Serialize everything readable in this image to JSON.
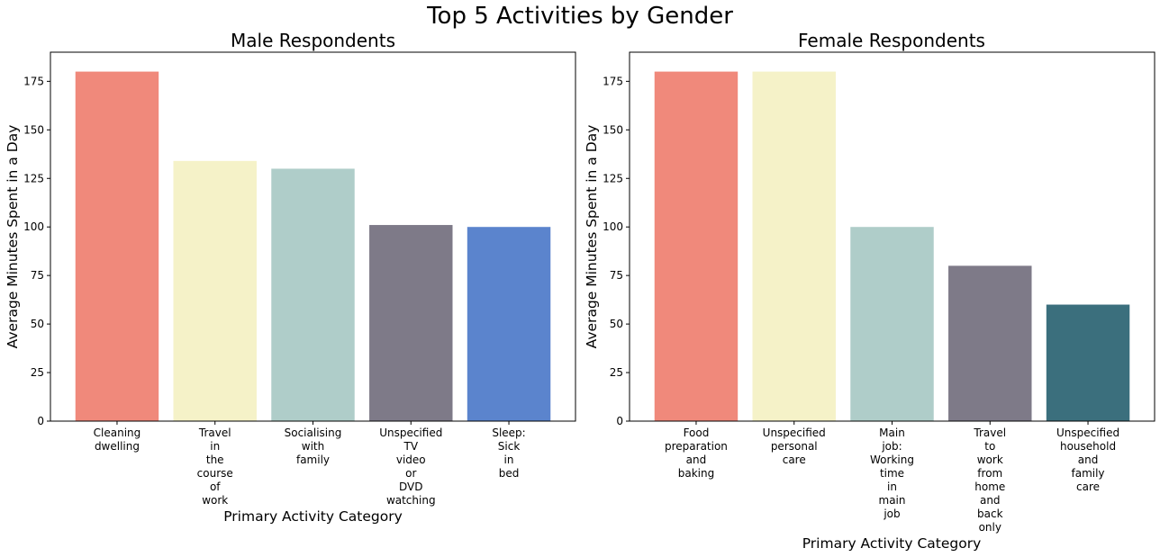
{
  "figure": {
    "title": "Top 5 Activities by Gender"
  },
  "chart_data": [
    {
      "type": "bar",
      "title": "Male Respondents",
      "xlabel": "Primary Activity Category",
      "ylabel": "Average Minutes Spent in a Day",
      "ylim": [
        0,
        190
      ],
      "yticks": [
        0,
        25,
        50,
        75,
        100,
        125,
        150,
        175
      ],
      "categories": [
        "Cleaning dwelling",
        "Travel in the course of work",
        "Socialising with family",
        "Unspecified TV video or DVD watching",
        "Sleep: Sick in bed"
      ],
      "values": [
        180,
        134,
        130,
        101,
        100
      ],
      "colors": [
        "#f0897b",
        "#f5f2c8",
        "#afcdc9",
        "#7e7a88",
        "#5b84cd"
      ],
      "grid": false
    },
    {
      "type": "bar",
      "title": "Female Respondents",
      "xlabel": "Primary Activity Category",
      "ylabel": "Average Minutes Spent in a Day",
      "ylim": [
        0,
        190
      ],
      "yticks": [
        0,
        25,
        50,
        75,
        100,
        125,
        150,
        175
      ],
      "categories": [
        "Food preparation and baking",
        "Unspecified personal care",
        "Main job: Working time in main job",
        "Travel to work from home and back only",
        "Unspecified household and family care"
      ],
      "values": [
        180,
        180,
        100,
        80,
        60
      ],
      "colors": [
        "#f0897b",
        "#f5f2c8",
        "#afcdc9",
        "#7e7a88",
        "#3b6f7d"
      ],
      "grid": false
    }
  ]
}
